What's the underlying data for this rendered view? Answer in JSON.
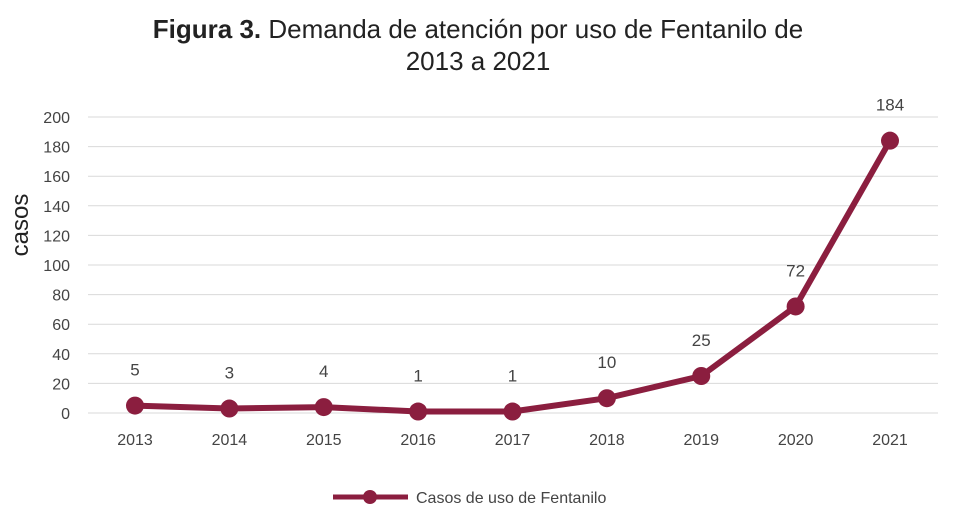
{
  "chart_data": {
    "type": "line",
    "title_bold": "Figura 3.",
    "title": "Demanda de atención por uso de Fentanilo de",
    "title_line2": "2013 a 2021",
    "xlabel": "",
    "ylabel": "casos",
    "categories": [
      "2013",
      "2014",
      "2015",
      "2016",
      "2017",
      "2018",
      "2019",
      "2020",
      "2021"
    ],
    "series": [
      {
        "name": "Casos de uso de Fentanilo",
        "values": [
          5,
          3,
          4,
          1,
          1,
          10,
          25,
          72,
          184
        ],
        "color": "#8b1e3f"
      }
    ],
    "ylim": [
      0,
      200
    ],
    "yticks": [
      0,
      20,
      40,
      60,
      80,
      100,
      120,
      140,
      160,
      180,
      200
    ],
    "grid": true,
    "legend": "bottom-center"
  }
}
